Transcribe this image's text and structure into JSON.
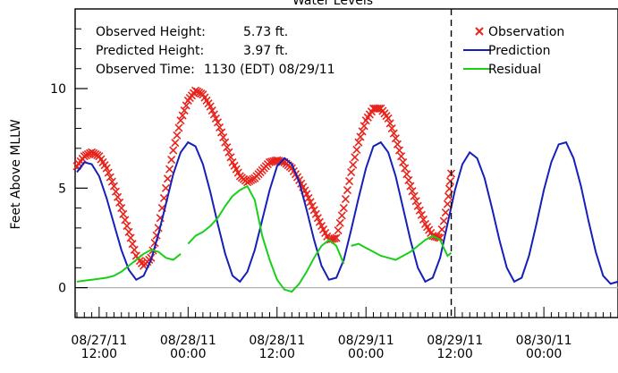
{
  "chart_data": {
    "type": "line",
    "title": "Water Levels",
    "ylabel": "Feet Above MLLW",
    "xlabel": "",
    "ylim": [
      -1.5,
      14
    ],
    "yticks": [
      0,
      5,
      10
    ],
    "grid": false,
    "legend_position": "top-right",
    "zero_line": true,
    "info": {
      "observed_height_label": "Observed Height:",
      "observed_height_value": "5.73 ft.",
      "predicted_height_label": "Predicted Height:",
      "predicted_height_value": "3.97 ft.",
      "observed_time_label": "Observed Time:",
      "observed_time_value": "1130 (EDT) 08/29/11"
    },
    "x_ticks": [
      {
        "t": 0,
        "date": "08/27/11",
        "time": "12:00"
      },
      {
        "t": 12,
        "date": "08/28/11",
        "time": "00:00"
      },
      {
        "t": 24,
        "date": "08/28/11",
        "time": "12:00"
      },
      {
        "t": 36,
        "date": "08/29/11",
        "time": "00:00"
      },
      {
        "t": 48,
        "date": "08/29/11",
        "time": "12:00"
      },
      {
        "t": 60,
        "date": "08/30/11",
        "time": "00:00"
      }
    ],
    "x_range_hours": [
      -3,
      70
    ],
    "current_time_hour": 47.5,
    "series": [
      {
        "name": "Observation",
        "color": "#e8231c",
        "marker": "x",
        "points": [
          [
            -3,
            6.1
          ],
          [
            -2,
            6.6
          ],
          [
            -1,
            6.8
          ],
          [
            0,
            6.6
          ],
          [
            1,
            6.0
          ],
          [
            2,
            5.1
          ],
          [
            3,
            4.0
          ],
          [
            4,
            2.8
          ],
          [
            5,
            1.6
          ],
          [
            6,
            1.1
          ],
          [
            7,
            1.5
          ],
          [
            8,
            3.0
          ],
          [
            9,
            5.0
          ],
          [
            10,
            6.9
          ],
          [
            11,
            8.4
          ],
          [
            12,
            9.4
          ],
          [
            13,
            9.9
          ],
          [
            14,
            9.7
          ],
          [
            15,
            9.1
          ],
          [
            16,
            8.3
          ],
          [
            17,
            7.3
          ],
          [
            18,
            6.3
          ],
          [
            19,
            5.6
          ],
          [
            20,
            5.3
          ],
          [
            21,
            5.5
          ],
          [
            22,
            5.9
          ],
          [
            23,
            6.3
          ],
          [
            24,
            6.4
          ],
          [
            25,
            6.3
          ],
          [
            26,
            6.0
          ],
          [
            27,
            5.4
          ],
          [
            28,
            4.7
          ],
          [
            29,
            3.9
          ],
          [
            30,
            3.1
          ],
          [
            31,
            2.4
          ],
          [
            32,
            2.5
          ],
          [
            33,
            4.0
          ],
          [
            34,
            5.8
          ],
          [
            35,
            7.3
          ],
          [
            36,
            8.4
          ],
          [
            37,
            9.0
          ],
          [
            38,
            9.0
          ],
          [
            39,
            8.5
          ],
          [
            40,
            7.5
          ],
          [
            41,
            6.3
          ],
          [
            42,
            5.1
          ],
          [
            43,
            4.1
          ],
          [
            44,
            3.2
          ],
          [
            45,
            2.6
          ],
          [
            46,
            2.5
          ],
          [
            47,
            4.2
          ],
          [
            47.5,
            5.73
          ]
        ]
      },
      {
        "name": "Prediction",
        "color": "#1520b8",
        "marker": "",
        "points": [
          [
            -3,
            5.8
          ],
          [
            -2,
            6.3
          ],
          [
            -1,
            6.2
          ],
          [
            0,
            5.6
          ],
          [
            1,
            4.5
          ],
          [
            2,
            3.2
          ],
          [
            3,
            1.9
          ],
          [
            4,
            0.9
          ],
          [
            5,
            0.4
          ],
          [
            6,
            0.6
          ],
          [
            7,
            1.4
          ],
          [
            8,
            2.7
          ],
          [
            9,
            4.2
          ],
          [
            10,
            5.7
          ],
          [
            11,
            6.8
          ],
          [
            12,
            7.3
          ],
          [
            13,
            7.1
          ],
          [
            14,
            6.2
          ],
          [
            15,
            4.8
          ],
          [
            16,
            3.2
          ],
          [
            17,
            1.7
          ],
          [
            18,
            0.6
          ],
          [
            19,
            0.3
          ],
          [
            20,
            0.8
          ],
          [
            21,
            1.9
          ],
          [
            22,
            3.4
          ],
          [
            23,
            4.9
          ],
          [
            24,
            6.1
          ],
          [
            25,
            6.5
          ],
          [
            26,
            6.2
          ],
          [
            27,
            5.3
          ],
          [
            28,
            3.9
          ],
          [
            29,
            2.4
          ],
          [
            30,
            1.1
          ],
          [
            31,
            0.4
          ],
          [
            32,
            0.5
          ],
          [
            33,
            1.4
          ],
          [
            34,
            2.9
          ],
          [
            35,
            4.5
          ],
          [
            36,
            6.0
          ],
          [
            37,
            7.1
          ],
          [
            38,
            7.3
          ],
          [
            39,
            6.8
          ],
          [
            40,
            5.6
          ],
          [
            41,
            4.0
          ],
          [
            42,
            2.4
          ],
          [
            43,
            1.0
          ],
          [
            44,
            0.3
          ],
          [
            45,
            0.5
          ],
          [
            46,
            1.5
          ],
          [
            47,
            3.2
          ],
          [
            48,
            4.9
          ],
          [
            49,
            6.2
          ],
          [
            50,
            6.8
          ],
          [
            51,
            6.5
          ],
          [
            52,
            5.5
          ],
          [
            53,
            4.0
          ],
          [
            54,
            2.4
          ],
          [
            55,
            1.0
          ],
          [
            56,
            0.3
          ],
          [
            57,
            0.5
          ],
          [
            58,
            1.6
          ],
          [
            59,
            3.2
          ],
          [
            60,
            4.9
          ],
          [
            61,
            6.3
          ],
          [
            62,
            7.2
          ],
          [
            63,
            7.3
          ],
          [
            64,
            6.5
          ],
          [
            65,
            5.1
          ],
          [
            66,
            3.4
          ],
          [
            67,
            1.8
          ],
          [
            68,
            0.6
          ],
          [
            69,
            0.2
          ],
          [
            70,
            0.3
          ]
        ]
      },
      {
        "name": "Residual",
        "color": "#19cf19",
        "marker": "",
        "segments": [
          [
            [
              -3,
              0.3
            ],
            [
              -2,
              0.35
            ],
            [
              -1,
              0.4
            ],
            [
              0,
              0.45
            ],
            [
              1,
              0.5
            ],
            [
              2,
              0.6
            ],
            [
              3,
              0.8
            ],
            [
              4,
              1.1
            ],
            [
              5,
              1.4
            ],
            [
              6,
              1.7
            ],
            [
              7,
              1.9
            ],
            [
              8,
              1.8
            ],
            [
              9,
              1.5
            ],
            [
              10,
              1.4
            ],
            [
              11,
              1.7
            ]
          ],
          [
            [
              12,
              2.2
            ],
            [
              13,
              2.6
            ],
            [
              14,
              2.8
            ],
            [
              15,
              3.1
            ],
            [
              16,
              3.5
            ],
            [
              17,
              4.1
            ],
            [
              18,
              4.6
            ],
            [
              19,
              4.9
            ],
            [
              20,
              5.1
            ],
            [
              21,
              4.4
            ],
            [
              22,
              2.6
            ],
            [
              23,
              1.4
            ],
            [
              24,
              0.4
            ],
            [
              25,
              -0.1
            ],
            [
              26,
              -0.2
            ],
            [
              27,
              0.2
            ],
            [
              28,
              0.8
            ],
            [
              29,
              1.5
            ],
            [
              30,
              2.1
            ],
            [
              31,
              2.4
            ],
            [
              32,
              2.1
            ],
            [
              33,
              1.2
            ]
          ],
          [
            [
              34,
              2.1
            ],
            [
              35,
              2.2
            ],
            [
              36,
              2.0
            ],
            [
              37,
              1.8
            ],
            [
              38,
              1.6
            ],
            [
              39,
              1.5
            ],
            [
              40,
              1.4
            ],
            [
              41,
              1.6
            ],
            [
              42,
              1.8
            ],
            [
              43,
              2.1
            ],
            [
              44,
              2.4
            ],
            [
              45,
              2.6
            ],
            [
              46,
              2.4
            ],
            [
              47,
              1.6
            ],
            [
              47.5,
              1.75
            ]
          ]
        ]
      }
    ]
  }
}
